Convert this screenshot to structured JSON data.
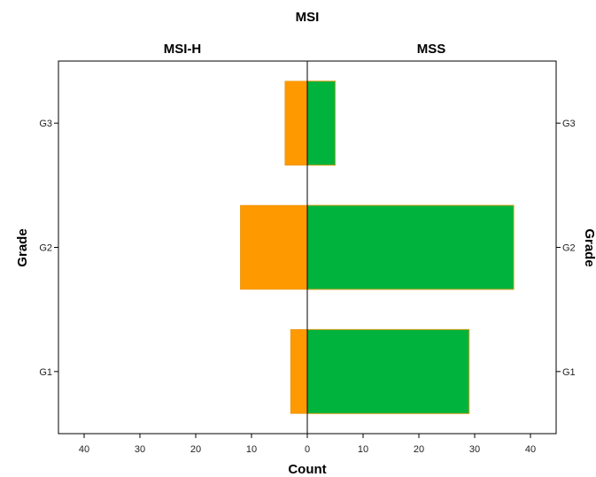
{
  "chart_data": {
    "type": "bar",
    "orientation": "horizontal",
    "layout": "back-to-back pyramid",
    "title": "MSI",
    "xlabel": "Count",
    "ylabel": "Grade",
    "categories": [
      "G1",
      "G2",
      "G3"
    ],
    "series": [
      {
        "name": "MSI-H",
        "values": [
          3,
          12,
          4
        ],
        "color": "#ff9900",
        "side": "left"
      },
      {
        "name": "MSS",
        "values": [
          29,
          37,
          5
        ],
        "color": "#00b33c",
        "side": "right"
      }
    ],
    "xlim": [
      0,
      44
    ],
    "x_ticks_left": [
      "40",
      "30",
      "20",
      "10",
      "0"
    ],
    "x_ticks_right": [
      "10",
      "20",
      "30",
      "40"
    ],
    "x_tick_values_left": [
      40,
      30,
      20,
      10,
      0
    ],
    "x_tick_values_right": [
      10,
      20,
      30,
      40
    ],
    "grid": false,
    "legend": "none"
  }
}
